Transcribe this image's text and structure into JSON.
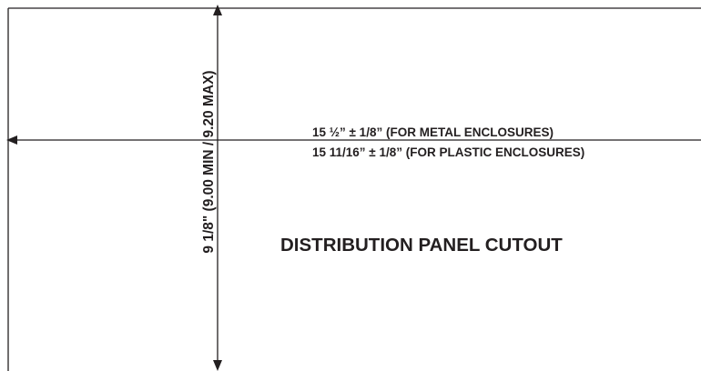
{
  "diagram": {
    "title": "DISTRIBUTION PANEL CUTOUT",
    "width_dimension": {
      "metal": "15 ½” ± 1/8” (FOR METAL ENCLOSURES)",
      "plastic": "15 11/16” ± 1/8” (FOR PLASTIC ENCLOSURES)"
    },
    "height_dimension": "9 1/8\" (9.00 MIN / 9.20 MAX)",
    "colors": {
      "line": "#231f20",
      "text": "#231f20"
    }
  }
}
